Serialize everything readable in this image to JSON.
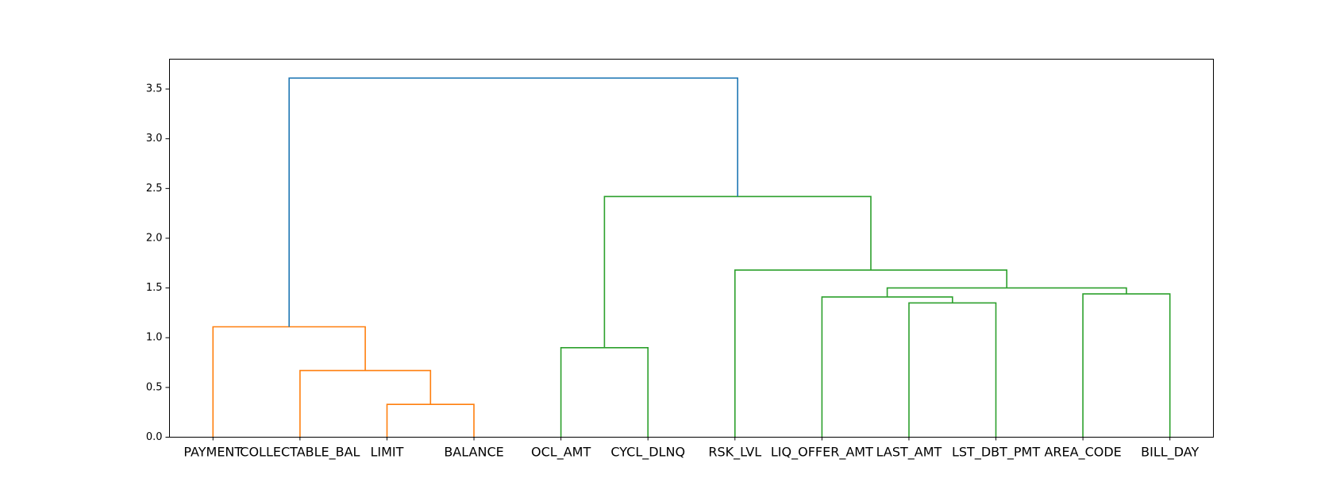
{
  "chart_data": {
    "type": "dendrogram",
    "title": "",
    "xlabel": "",
    "ylabel": "",
    "ylim": [
      0,
      3.8
    ],
    "y_ticks": [
      0.0,
      0.5,
      1.0,
      1.5,
      2.0,
      2.5,
      3.0,
      3.5
    ],
    "y_tick_labels": [
      "0.0",
      "0.5",
      "1.0",
      "1.5",
      "2.0",
      "2.5",
      "3.0",
      "3.5"
    ],
    "grid": false,
    "leaves": [
      "PAYMENT",
      "COLLECTABLE_BAL",
      "LIMIT",
      "BALANCE",
      "OCL_AMT",
      "CYCL_DLNQ",
      "RSK_LVL",
      "LIQ_OFFER_AMT",
      "LAST_AMT",
      "LST_DBT_PMT",
      "AREA_CODE",
      "BILL_DAY"
    ],
    "merges": [
      {
        "left": "LIMIT",
        "right": "BALANCE",
        "height": 0.33,
        "color": "#ff7f0e"
      },
      {
        "left": "COLLECTABLE_BAL",
        "right": "c1",
        "height": 0.67,
        "color": "#ff7f0e"
      },
      {
        "left": "PAYMENT",
        "right": "c2",
        "height": 1.11,
        "color": "#ff7f0e"
      },
      {
        "left": "OCL_AMT",
        "right": "CYCL_DLNQ",
        "height": 0.9,
        "color": "#2ca02c"
      },
      {
        "left": "LAST_AMT",
        "right": "LST_DBT_PMT",
        "height": 1.35,
        "color": "#2ca02c"
      },
      {
        "left": "LIQ_OFFER_AMT",
        "right": "c5",
        "height": 1.41,
        "color": "#2ca02c"
      },
      {
        "left": "AREA_CODE",
        "right": "BILL_DAY",
        "height": 1.44,
        "color": "#2ca02c"
      },
      {
        "left": "c6",
        "right": "c7",
        "height": 1.5,
        "color": "#2ca02c"
      },
      {
        "left": "RSK_LVL",
        "right": "c8",
        "height": 1.68,
        "color": "#2ca02c"
      },
      {
        "left": "c4",
        "right": "c9",
        "height": 2.42,
        "color": "#2ca02c"
      },
      {
        "left": "c3",
        "right": "c10",
        "height": 3.61,
        "color": "#1f77b4"
      }
    ],
    "colors": {
      "cluster_1": "#ff7f0e",
      "cluster_2": "#2ca02c",
      "root": "#1f77b4"
    }
  }
}
